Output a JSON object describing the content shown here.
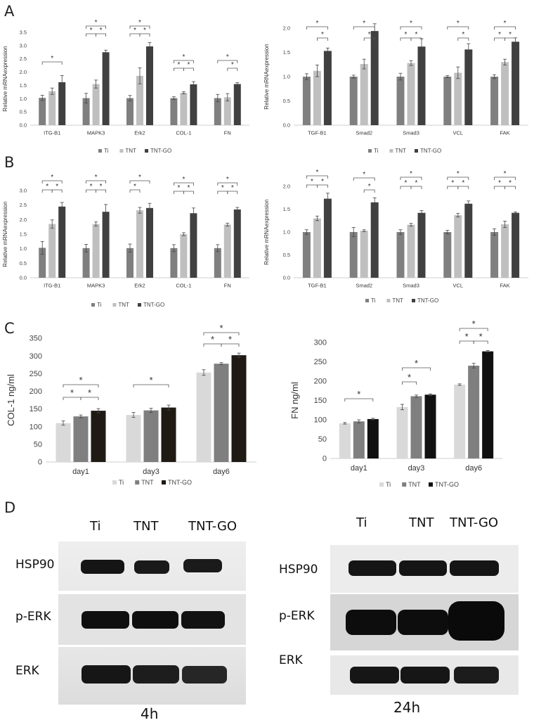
{
  "panel_labels": {
    "a": "A",
    "b": "B",
    "c": "C",
    "d": "D"
  },
  "legend_labels": [
    "Ti",
    "TNT",
    "TNT-GO"
  ],
  "colors": {
    "ab": [
      "#7f7f7f",
      "#bfbfbf",
      "#404040"
    ],
    "c_left": [
      "#d9d9d9",
      "#7f7f7f",
      "#1f1a14"
    ],
    "c_right": [
      "#d9d9d9",
      "#7f7f7f",
      "#111111"
    ]
  },
  "chart_data": [
    {
      "id": "A1",
      "type": "bar",
      "ylabel": "Relative mRNAexpression",
      "ylim": [
        0,
        3.5
      ],
      "yticks": [
        "0.0",
        "0.5",
        "1.0",
        "1.5",
        "2.0",
        "2.5",
        "3.0",
        "3.5"
      ],
      "categories": [
        "ITG-B1",
        "MAPK3",
        "Erk2",
        "COL-1",
        "FN"
      ],
      "series": [
        {
          "name": "Ti",
          "values": [
            1.03,
            1.02,
            1.02,
            1.02,
            1.02
          ],
          "err": [
            0.1,
            0.18,
            0.1,
            0.05,
            0.14
          ]
        },
        {
          "name": "TNT",
          "values": [
            1.28,
            1.55,
            1.86,
            1.22,
            1.05
          ],
          "err": [
            0.12,
            0.15,
            0.3,
            0.04,
            0.14
          ]
        },
        {
          "name": "TNT-GO",
          "values": [
            1.62,
            2.75,
            2.97,
            1.54,
            1.55
          ],
          "err": [
            0.25,
            0.08,
            0.15,
            0.1,
            0.05
          ]
        }
      ],
      "annotations": [
        "*",
        "*",
        "*",
        "*",
        "*",
        "*",
        "*",
        "*",
        "*",
        "*",
        "*",
        "*",
        "*"
      ]
    },
    {
      "id": "A2",
      "type": "bar",
      "ylabel": "Relative mRNAexpression",
      "ylim": [
        0,
        2.0
      ],
      "yticks": [
        "0.0",
        "0.5",
        "1.0",
        "1.5",
        "2.0"
      ],
      "categories": [
        "TGF-B1",
        "Smad2",
        "Smad3",
        "VCL",
        "FAK"
      ],
      "series": [
        {
          "name": "Ti",
          "values": [
            1.0,
            1.0,
            1.0,
            1.0,
            1.0
          ],
          "err": [
            0.06,
            0.03,
            0.07,
            0.02,
            0.04
          ]
        },
        {
          "name": "TNT",
          "values": [
            1.12,
            1.26,
            1.28,
            1.08,
            1.3
          ],
          "err": [
            0.12,
            0.1,
            0.05,
            0.12,
            0.06
          ]
        },
        {
          "name": "TNT-GO",
          "values": [
            1.53,
            1.94,
            1.62,
            1.56,
            1.72
          ],
          "err": [
            0.06,
            0.15,
            0.16,
            0.12,
            0.08
          ]
        }
      ],
      "annotations": [
        "*",
        "*",
        "*",
        "*",
        "*",
        "*",
        "*",
        "*",
        "*",
        "*",
        "*",
        "*",
        "*"
      ]
    },
    {
      "id": "B1",
      "type": "bar",
      "ylabel": "Relative mRNAexpression",
      "ylim": [
        0,
        3.0
      ],
      "yticks": [
        "0.0",
        "0.5",
        "1.0",
        "1.5",
        "2.0",
        "2.5",
        "3.0"
      ],
      "categories": [
        "ITG-B1",
        "MAPK3",
        "Erk2",
        "COL-1",
        "FN"
      ],
      "series": [
        {
          "name": "Ti",
          "values": [
            1.03,
            1.02,
            1.02,
            1.02,
            1.02
          ],
          "err": [
            0.22,
            0.13,
            0.14,
            0.12,
            0.12
          ]
        },
        {
          "name": "TNT",
          "values": [
            1.85,
            1.85,
            2.32,
            1.5,
            1.83
          ],
          "err": [
            0.14,
            0.07,
            0.1,
            0.05,
            0.05
          ]
        },
        {
          "name": "TNT-GO",
          "values": [
            2.45,
            2.27,
            2.4,
            2.22,
            2.35
          ],
          "err": [
            0.14,
            0.25,
            0.16,
            0.18,
            0.07
          ]
        }
      ],
      "annotations": [
        "*",
        "*",
        "*",
        "*",
        "*",
        "*",
        "*",
        "*",
        "*",
        "*",
        "*",
        "*",
        "*"
      ]
    },
    {
      "id": "B2",
      "type": "bar",
      "ylabel": "Relative mRNAexpression",
      "ylim": [
        0,
        2.0
      ],
      "yticks": [
        "0.0",
        "0.5",
        "1.0",
        "1.5",
        "2.0"
      ],
      "categories": [
        "TGF-B1",
        "Smad2",
        "Smad3",
        "VCL",
        "FAK"
      ],
      "series": [
        {
          "name": "Ti",
          "values": [
            1.0,
            1.0,
            1.0,
            1.0,
            1.0
          ],
          "err": [
            0.05,
            0.1,
            0.05,
            0.04,
            0.07
          ]
        },
        {
          "name": "TNT",
          "values": [
            1.3,
            1.03,
            1.16,
            1.37,
            1.17
          ],
          "err": [
            0.05,
            0.02,
            0.03,
            0.04,
            0.07
          ]
        },
        {
          "name": "TNT-GO",
          "values": [
            1.73,
            1.65,
            1.42,
            1.62,
            1.42
          ],
          "err": [
            0.12,
            0.1,
            0.05,
            0.06,
            0.02
          ]
        }
      ],
      "annotations": [
        "*",
        "*",
        "*",
        "*",
        "*",
        "*",
        "*",
        "*",
        "*",
        "*",
        "*",
        "*",
        "*"
      ]
    },
    {
      "id": "C1",
      "type": "bar",
      "ylabel": "COL-1 ng/ml",
      "ylim": [
        0,
        350
      ],
      "yticks": [
        "0",
        "50",
        "100",
        "150",
        "200",
        "250",
        "300",
        "350"
      ],
      "categories": [
        "day1",
        "day3",
        "day6"
      ],
      "series": [
        {
          "name": "Ti",
          "values": [
            110,
            133,
            253
          ],
          "err": [
            6,
            7,
            8
          ]
        },
        {
          "name": "TNT",
          "values": [
            129,
            146,
            278
          ],
          "err": [
            4,
            6,
            3
          ]
        },
        {
          "name": "TNT-GO",
          "values": [
            145,
            154,
            302
          ],
          "err": [
            6,
            7,
            6
          ]
        }
      ],
      "annotations": [
        "*",
        "*",
        "*",
        "*",
        "*",
        "*",
        "*"
      ]
    },
    {
      "id": "C2",
      "type": "bar",
      "ylabel": "FN ng/ml",
      "ylim": [
        0,
        300
      ],
      "yticks": [
        "0",
        "50",
        "100",
        "150",
        "200",
        "250",
        "300"
      ],
      "categories": [
        "day1",
        "day3",
        "day6"
      ],
      "series": [
        {
          "name": "Ti",
          "values": [
            91,
            133,
            191
          ],
          "err": [
            2,
            7,
            2
          ]
        },
        {
          "name": "TNT",
          "values": [
            96,
            161,
            240
          ],
          "err": [
            4,
            3,
            6
          ]
        },
        {
          "name": "TNT-GO",
          "values": [
            102,
            165,
            277
          ],
          "err": [
            2,
            2,
            2
          ]
        }
      ],
      "annotations": [
        "*",
        "*",
        "*",
        "*",
        "*",
        "*",
        "*"
      ]
    }
  ],
  "western_blot": {
    "left": {
      "lanes": [
        "Ti",
        "TNT",
        "TNT-GO"
      ],
      "rows": [
        "HSP90",
        "p-ERK",
        "ERK"
      ],
      "time": "4h"
    },
    "right": {
      "lanes": [
        "Ti",
        "TNT",
        "TNT-GO"
      ],
      "rows": [
        "HSP90",
        "p-ERK",
        "ERK"
      ],
      "time": "24h"
    }
  }
}
